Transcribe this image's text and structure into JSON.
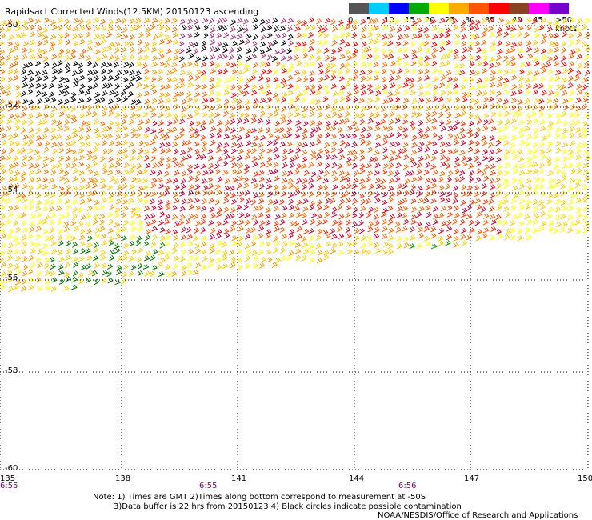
{
  "title": "Rapidsact Corrected Winds(12.5KM) 20150123 ascending",
  "legend": {
    "colors": [
      "#555555",
      "#aaaaaa",
      "#00aaff",
      "#0000ff",
      "#00aa00",
      "#00ff00",
      "#ffff00",
      "#ffaa00",
      "#ff6600",
      "#ff0000",
      "#cc0033",
      "#993300",
      "#aa3377",
      "#ff00ff",
      "#7700cc",
      "#000000"
    ],
    "ticks": [
      "0",
      "5",
      "10",
      "15",
      "20",
      "25",
      "30",
      "35",
      "40",
      "45"
    ],
    "units_label": ">50 knots"
  },
  "axes": {
    "lat_labels": [
      "-50",
      "-52",
      "-54",
      "-56",
      "-58",
      "-60"
    ],
    "lon_labels": [
      "135",
      "138",
      "141",
      "144",
      "147",
      "150"
    ]
  },
  "times": [
    "6:55",
    "6:55",
    "6:56"
  ],
  "notes": {
    "line1": "Note: 1) Times are GMT 2)Times along bottom correspond to measurement at -50S",
    "line2": "3)Data buffer is 22 hrs from 20150123 4) Black circles indicate possible contamination",
    "line3": "NOAA/NESDIS/Office of Research and Applications"
  },
  "map": {
    "lon_range": [
      135,
      150
    ],
    "lat_range": [
      -60,
      -50
    ],
    "swath_description_colors": [
      "#ffff00",
      "#ffcc00",
      "#ff9900",
      "#ff6600",
      "#ff0000",
      "#cc0033",
      "#aa3377",
      "#000000",
      "#007700",
      "#00aa00"
    ]
  }
}
